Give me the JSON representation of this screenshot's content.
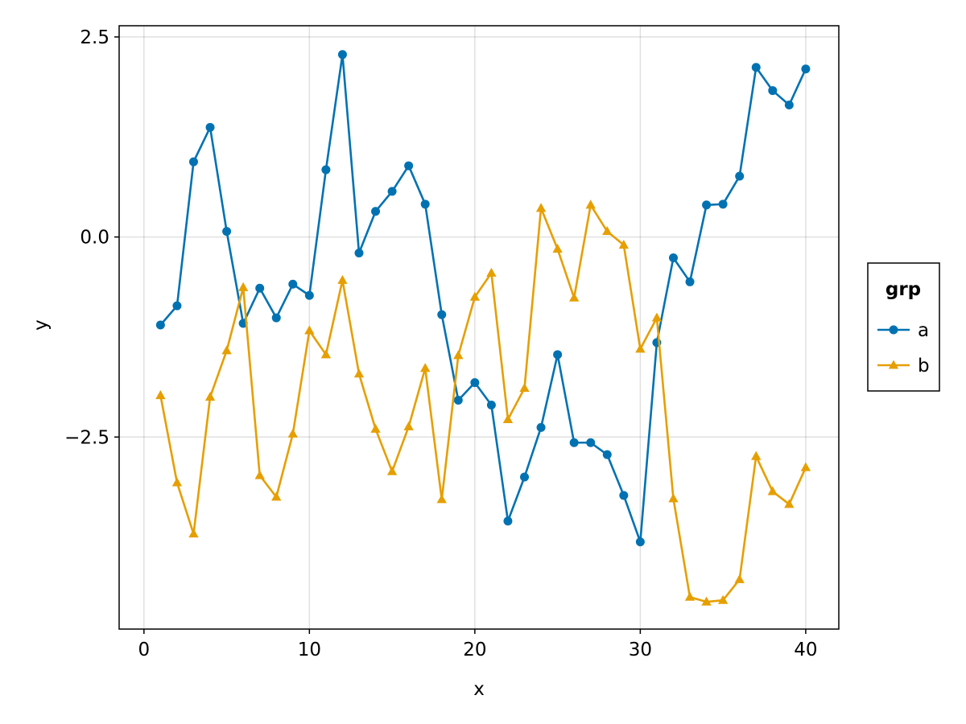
{
  "chart_data": {
    "type": "line",
    "title": "",
    "xlabel": "x",
    "ylabel": "y",
    "xlim": [
      -1.5,
      42.0
    ],
    "ylim": [
      -4.9,
      2.64
    ],
    "x_ticks": [
      0,
      10,
      20,
      30,
      40
    ],
    "y_ticks": [
      2.5,
      0.0,
      -2.5
    ],
    "x_tick_labels": [
      "0",
      "10",
      "20",
      "30",
      "40"
    ],
    "y_tick_labels": [
      "2.5",
      "0.0",
      "−2.5"
    ],
    "grid": true,
    "legend": {
      "title": "grp",
      "placement": "right"
    },
    "x": [
      1,
      2,
      3,
      4,
      5,
      6,
      7,
      8,
      9,
      10,
      11,
      12,
      13,
      14,
      15,
      16,
      17,
      18,
      19,
      20,
      21,
      22,
      23,
      24,
      25,
      26,
      27,
      28,
      29,
      30,
      31,
      32,
      33,
      34,
      35,
      36,
      37,
      38,
      39,
      40
    ],
    "series": [
      {
        "name": "a",
        "color": "#0072b2",
        "marker": "circle",
        "values": [
          -1.1,
          -0.86,
          0.94,
          1.37,
          0.07,
          -1.08,
          -0.64,
          -1.01,
          -0.59,
          -0.73,
          0.84,
          2.28,
          -0.2,
          0.32,
          0.57,
          0.89,
          0.41,
          -0.97,
          -2.04,
          -1.82,
          -2.1,
          -3.55,
          -3.0,
          -2.38,
          -1.47,
          -2.57,
          -2.57,
          -2.72,
          -3.23,
          -3.81,
          -1.32,
          -0.26,
          -0.56,
          0.4,
          0.41,
          0.76,
          2.12,
          1.83,
          1.65,
          2.1
        ]
      },
      {
        "name": "b",
        "color": "#e69f00",
        "marker": "triangle",
        "values": [
          -1.98,
          -3.07,
          -3.71,
          -2.0,
          -1.42,
          -0.63,
          -2.98,
          -3.25,
          -2.46,
          -1.17,
          -1.47,
          -0.54,
          -1.71,
          -2.4,
          -2.93,
          -2.37,
          -1.64,
          -3.28,
          -1.48,
          -0.75,
          -0.45,
          -2.28,
          -1.89,
          0.36,
          -0.15,
          -0.76,
          0.4,
          0.07,
          -0.1,
          -1.4,
          -1.01,
          -3.27,
          -4.5,
          -4.56,
          -4.54,
          -4.28,
          -2.74,
          -3.18,
          -3.34,
          -2.88
        ]
      }
    ]
  }
}
